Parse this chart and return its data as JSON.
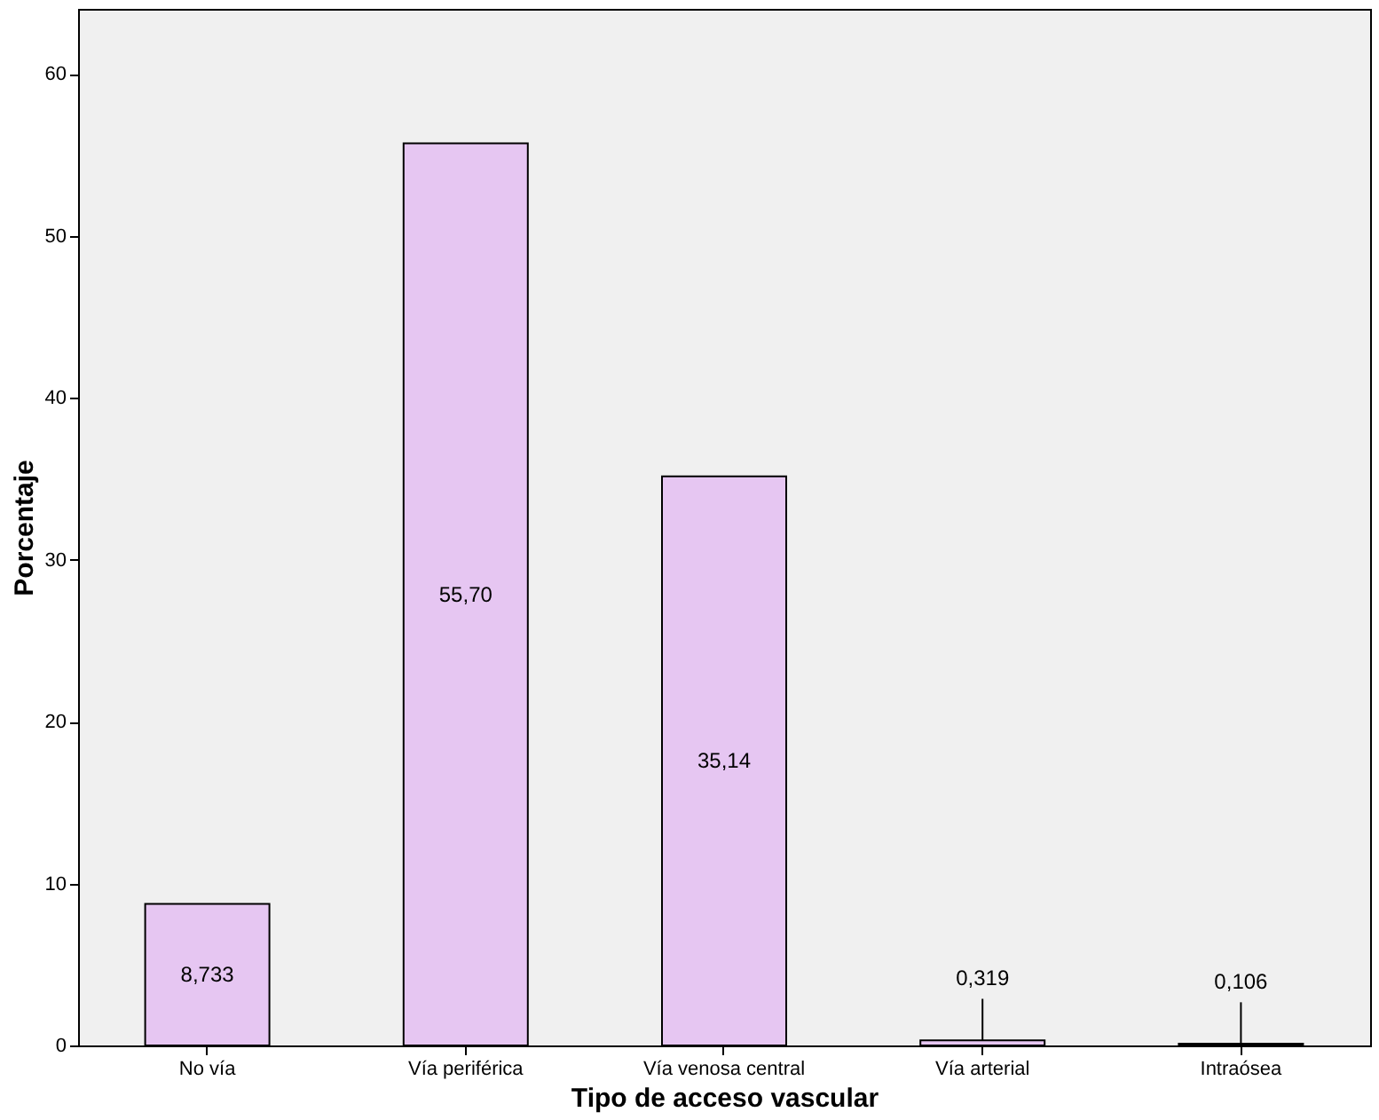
{
  "chart_data": {
    "type": "bar",
    "xlabel": "Tipo de acceso vascular",
    "ylabel": "Porcentaje",
    "categories": [
      "No vía",
      "Vía periférica",
      "Vía venosa central",
      "Vía arterial",
      "Intraósea"
    ],
    "values": [
      8.733,
      55.7,
      35.14,
      0.319,
      0.106
    ],
    "value_labels": [
      "8,733",
      "55,70",
      "35,14",
      "0,319",
      "0,106"
    ],
    "color": "#e6c6f2",
    "ylim": [
      0,
      64
    ],
    "yticks": [
      0,
      10,
      20,
      30,
      40,
      50,
      60
    ],
    "grid": false
  }
}
